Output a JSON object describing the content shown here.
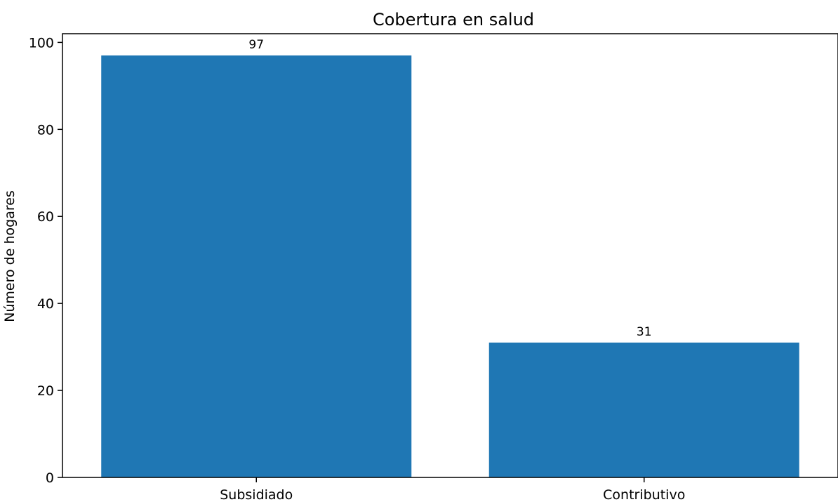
{
  "chart_data": {
    "type": "bar",
    "title": "Cobertura en salud",
    "xlabel": "",
    "ylabel": "Número de hogares",
    "categories": [
      "Subsidiado",
      "Contributivo"
    ],
    "values": [
      97,
      31
    ],
    "data_labels": [
      "97",
      "31"
    ],
    "ylim": [
      0,
      102
    ],
    "yticks": [
      0,
      20,
      40,
      60,
      80,
      100
    ],
    "grid": false,
    "legend": "none",
    "bar_color": "#1f77b4"
  }
}
